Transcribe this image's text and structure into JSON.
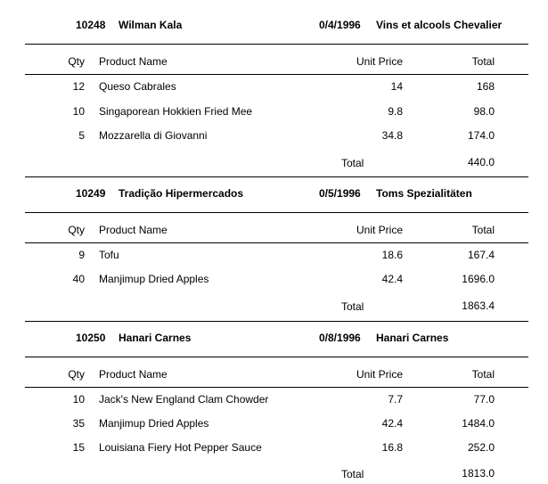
{
  "report": {
    "orders": [
      {
        "order_id": "10248",
        "customer": "Wilman Kala",
        "date": "0/4/1996",
        "ship_name": "Vins et alcools Chevalier",
        "headers": {
          "qty": "Qty",
          "product": "Product Name",
          "unit_price": "Unit Price",
          "total": "Total"
        },
        "items": [
          {
            "qty": "12",
            "product": "Queso Cabrales",
            "unit_price": "14",
            "total": "168"
          },
          {
            "qty": "10",
            "product": "Singaporean Hokkien Fried Mee",
            "unit_price": "9.8",
            "total": "98.0"
          },
          {
            "qty": "5",
            "product": "Mozzarella di Giovanni",
            "unit_price": "34.8",
            "total": "174.0"
          }
        ],
        "total_label": "Total",
        "order_total": "440.0"
      },
      {
        "order_id": "10249",
        "customer": "Tradição Hipermercados",
        "date": "0/5/1996",
        "ship_name": "Toms Spezialitäten",
        "headers": {
          "qty": "Qty",
          "product": "Product Name",
          "unit_price": "Unit Price",
          "total": "Total"
        },
        "items": [
          {
            "qty": "9",
            "product": "Tofu",
            "unit_price": "18.6",
            "total": "167.4"
          },
          {
            "qty": "40",
            "product": "Manjimup Dried Apples",
            "unit_price": "42.4",
            "total": "1696.0"
          }
        ],
        "total_label": "Total",
        "order_total": "1863.4"
      },
      {
        "order_id": "10250",
        "customer": "Hanari Carnes",
        "date": "0/8/1996",
        "ship_name": "Hanari Carnes",
        "headers": {
          "qty": "Qty",
          "product": "Product Name",
          "unit_price": "Unit Price",
          "total": "Total"
        },
        "items": [
          {
            "qty": "10",
            "product": "Jack's New England Clam Chowder",
            "unit_price": "7.7",
            "total": "77.0"
          },
          {
            "qty": "35",
            "product": "Manjimup Dried Apples",
            "unit_price": "42.4",
            "total": "1484.0"
          },
          {
            "qty": "15",
            "product": "Louisiana Fiery Hot Pepper Sauce",
            "unit_price": "16.8",
            "total": "252.0"
          }
        ],
        "total_label": "Total",
        "order_total": "1813.0"
      }
    ]
  }
}
